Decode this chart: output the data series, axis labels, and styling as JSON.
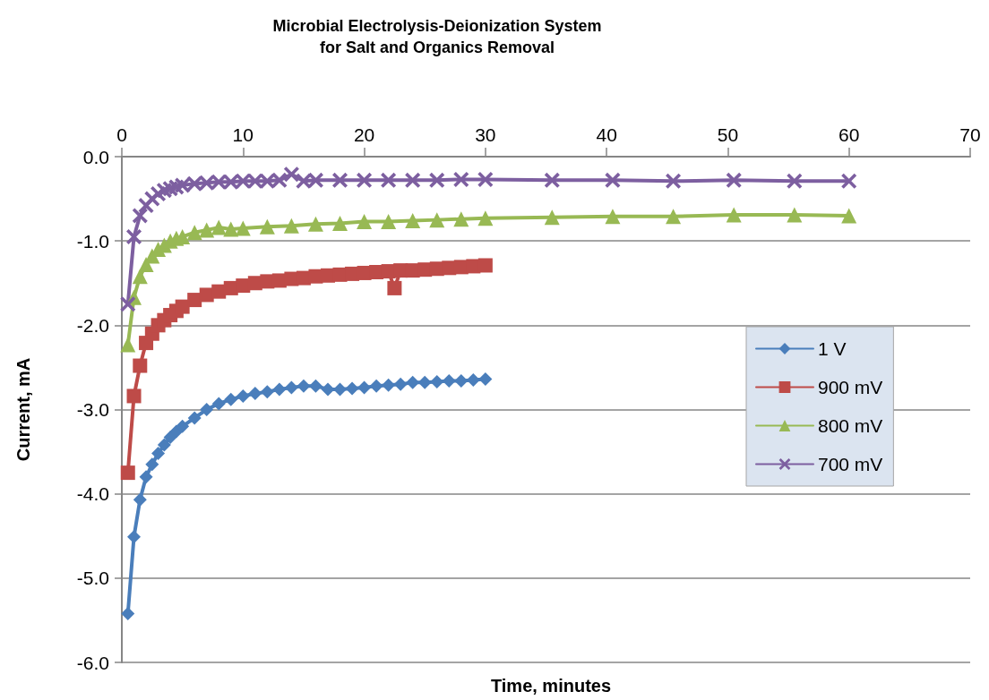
{
  "chart_data": {
    "type": "line",
    "title": "Microbial Electrolysis-Deionization System\nfor Salt and Organics Removal",
    "xlabel": "Time, minutes",
    "ylabel": "Current, mA",
    "xlim": [
      0,
      70
    ],
    "xticks": [
      0,
      10,
      20,
      30,
      40,
      50,
      60,
      70
    ],
    "ylim": [
      -6,
      0
    ],
    "yticks": [
      {
        "value": -6,
        "label": "-6.0"
      },
      {
        "value": -5,
        "label": "-5.0"
      },
      {
        "value": -4,
        "label": "-4.0"
      },
      {
        "value": -3,
        "label": "-3.0"
      },
      {
        "value": -2,
        "label": "-2.0"
      },
      {
        "value": -1,
        "label": "-1.0"
      },
      {
        "value": 0,
        "label": "0.0"
      }
    ],
    "grid": "y",
    "legend": "right",
    "series": [
      {
        "name": "1 V",
        "color": "#4a7ebb",
        "marker": "diamond",
        "x": [
          0.5,
          1,
          1.5,
          2,
          2.5,
          3,
          3.5,
          4,
          4.5,
          5,
          6,
          7,
          8,
          9,
          10,
          11,
          12,
          13,
          14,
          15,
          16,
          17,
          18,
          19,
          20,
          21,
          22,
          23,
          24,
          25,
          26,
          27,
          28,
          29,
          30
        ],
        "values": [
          -5.42,
          -4.51,
          -4.07,
          -3.8,
          -3.65,
          -3.52,
          -3.42,
          -3.33,
          -3.26,
          -3.2,
          -3.1,
          -3.0,
          -2.93,
          -2.88,
          -2.84,
          -2.81,
          -2.79,
          -2.76,
          -2.74,
          -2.72,
          -2.72,
          -2.76,
          -2.76,
          -2.75,
          -2.74,
          -2.72,
          -2.71,
          -2.7,
          -2.68,
          -2.68,
          -2.67,
          -2.66,
          -2.66,
          -2.65,
          -2.64
        ]
      },
      {
        "name": "900 mV",
        "color": "#be4b48",
        "marker": "square",
        "x": [
          0.5,
          1,
          1.5,
          2,
          2.5,
          3,
          3.5,
          4,
          4.5,
          5,
          6,
          7,
          8,
          9,
          10,
          11,
          12,
          13,
          14,
          15,
          16,
          17,
          18,
          19,
          20,
          21,
          22,
          22.5,
          23,
          24,
          25,
          26,
          27,
          28,
          29,
          30
        ],
        "values": [
          -3.75,
          -2.84,
          -2.48,
          -2.21,
          -2.1,
          -2.0,
          -1.94,
          -1.88,
          -1.83,
          -1.78,
          -1.7,
          -1.64,
          -1.6,
          -1.56,
          -1.53,
          -1.5,
          -1.48,
          -1.47,
          -1.45,
          -1.44,
          -1.42,
          -1.41,
          -1.4,
          -1.39,
          -1.38,
          -1.37,
          -1.36,
          -1.56,
          -1.35,
          -1.35,
          -1.34,
          -1.33,
          -1.32,
          -1.31,
          -1.3,
          -1.29
        ]
      },
      {
        "name": "800 mV",
        "color": "#98b954",
        "marker": "triangle",
        "x": [
          0.5,
          1,
          1.5,
          2,
          2.5,
          3,
          3.5,
          4,
          4.5,
          5,
          6,
          7,
          8,
          9,
          10,
          12,
          14,
          16,
          18,
          20,
          22,
          24,
          26,
          28,
          30,
          35.5,
          40.5,
          45.5,
          50.5,
          55.5,
          60
        ],
        "values": [
          -2.23,
          -1.67,
          -1.42,
          -1.28,
          -1.18,
          -1.1,
          -1.05,
          -1.0,
          -0.97,
          -0.95,
          -0.9,
          -0.87,
          -0.84,
          -0.86,
          -0.85,
          -0.83,
          -0.82,
          -0.8,
          -0.79,
          -0.77,
          -0.77,
          -0.76,
          -0.75,
          -0.74,
          -0.73,
          -0.72,
          -0.71,
          -0.71,
          -0.69,
          -0.69,
          -0.7
        ]
      },
      {
        "name": "700 mV",
        "color": "#7d5fa0",
        "marker": "cross",
        "x": [
          0.5,
          1,
          1.5,
          2,
          2.5,
          3,
          3.5,
          4,
          4.5,
          5,
          6,
          7,
          8,
          9,
          10,
          11,
          12,
          13,
          14,
          15,
          16,
          18,
          20,
          22,
          24,
          26,
          28,
          30,
          35.5,
          40.5,
          45.5,
          50.5,
          55.5,
          60
        ],
        "values": [
          -1.75,
          -0.95,
          -0.7,
          -0.58,
          -0.5,
          -0.44,
          -0.4,
          -0.38,
          -0.36,
          -0.34,
          -0.32,
          -0.31,
          -0.3,
          -0.3,
          -0.29,
          -0.29,
          -0.29,
          -0.28,
          -0.21,
          -0.29,
          -0.28,
          -0.28,
          -0.28,
          -0.28,
          -0.28,
          -0.28,
          -0.27,
          -0.27,
          -0.28,
          -0.28,
          -0.29,
          -0.28,
          -0.29,
          -0.29
        ]
      }
    ]
  }
}
